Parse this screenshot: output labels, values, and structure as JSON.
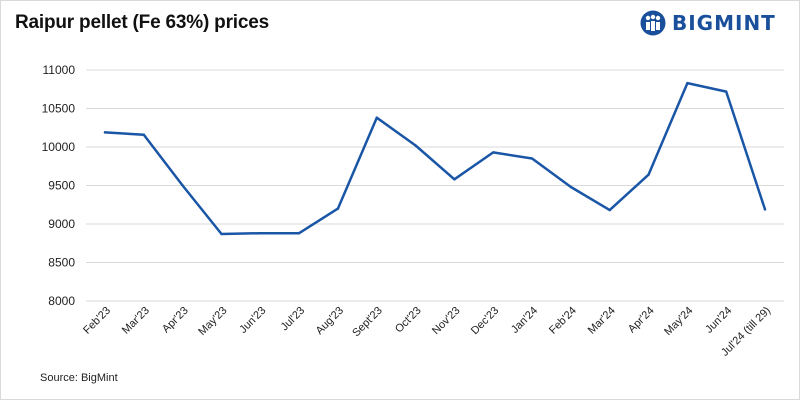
{
  "header": {
    "title": "Raipur pellet (Fe 63%) prices",
    "logo_text": "BIGMINT"
  },
  "footer": {
    "source": "Source: BigMint"
  },
  "colors": {
    "line": "#1a56a6",
    "grid": "#d9d9d9",
    "brand": "#1a4f9c"
  },
  "chart_data": {
    "type": "line",
    "title": "Raipur pellet (Fe 63%) prices",
    "xlabel": "",
    "ylabel": "",
    "categories": [
      "Feb'23",
      "Mar'23",
      "Apr'23",
      "May'23",
      "Jun'23",
      "Jul'23",
      "Aug'23",
      "Sept'23",
      "Oct'23",
      "Nov'23",
      "Dec'23",
      "Jan'24",
      "Feb'24",
      "Mar'24",
      "Apr'24",
      "May'24",
      "Jun'24",
      "Jul'24 (till 29)"
    ],
    "series": [
      {
        "values": [
          10190,
          10160,
          9500,
          8870,
          8880,
          8880,
          9200,
          10380,
          10020,
          9580,
          9930,
          9850,
          9480,
          9180,
          9640,
          10830,
          10720,
          9190
        ]
      }
    ],
    "ylim": [
      8000,
      11000
    ],
    "yticks": [
      8000,
      8500,
      9000,
      9500,
      10000,
      10500,
      11000
    ],
    "grid": true,
    "legend": "none"
  }
}
